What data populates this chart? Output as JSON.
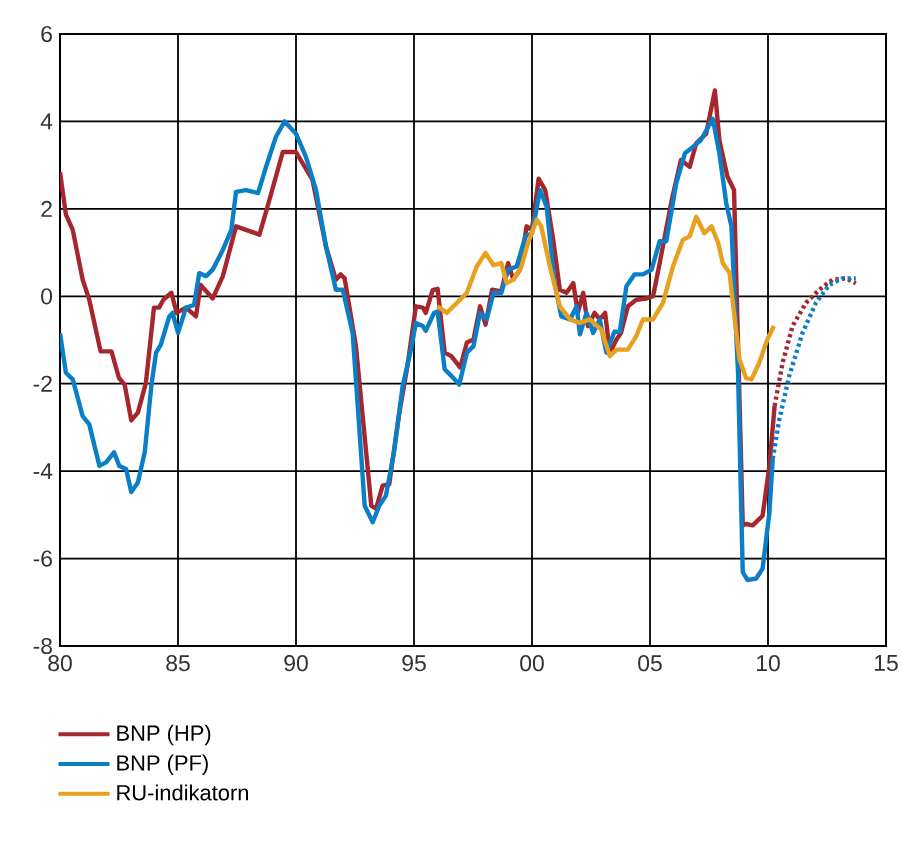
{
  "chart_data": {
    "type": "line",
    "xlim": [
      1980,
      2015
    ],
    "ylim": [
      -8,
      6
    ],
    "xticks": [
      {
        "value": 1980,
        "label": "80"
      },
      {
        "value": 1985,
        "label": "85"
      },
      {
        "value": 1990,
        "label": "90"
      },
      {
        "value": 1995,
        "label": "95"
      },
      {
        "value": 2000,
        "label": "00"
      },
      {
        "value": 2005,
        "label": "05"
      },
      {
        "value": 2010,
        "label": "10"
      },
      {
        "value": 2015,
        "label": "15"
      }
    ],
    "yticks": [
      -8,
      -6,
      -4,
      -2,
      0,
      2,
      4,
      6
    ],
    "grid": true,
    "legend": "bottom",
    "series": [
      {
        "name": "BNP (HP)",
        "color": "#a6262d",
        "x": [
          1980.0,
          1980.25,
          1980.54,
          1980.96,
          1981.24,
          1981.72,
          1982.18,
          1982.5,
          1982.74,
          1983.02,
          1983.3,
          1983.64,
          1983.98,
          1984.2,
          1984.38,
          1984.72,
          1984.94,
          1985.34,
          1985.76,
          1985.96,
          1986.47,
          1986.9,
          1987.46,
          1987.88,
          1988.45,
          1988.73,
          1989.44,
          1990.0,
          1990.7,
          1991.27,
          1991.69,
          1991.89,
          1992.06,
          1992.54,
          1993.19,
          1993.39,
          1993.67,
          1993.95,
          1994.38,
          1994.72,
          1995.08,
          1995.37,
          1995.5,
          1995.79,
          1996.0,
          1996.3,
          1996.58,
          1996.96,
          1997.24,
          1997.52,
          1997.8,
          1998.03,
          1998.31,
          1998.7,
          1998.99,
          1999.21,
          1999.49,
          1999.77,
          2000.0,
          2000.28,
          2000.56,
          2000.9,
          2001.18,
          2001.46,
          2001.75,
          2001.94,
          2002.17,
          2002.37,
          2002.65,
          2002.87,
          2003.1,
          2003.3,
          2003.58,
          2003.77,
          2004.06,
          2004.42,
          2004.85,
          2005.13,
          2005.41,
          2005.92,
          2006.31,
          2006.68,
          2006.96,
          2007.38,
          2007.75,
          2007.94,
          2008.28,
          2008.56,
          2008.93,
          2009.07,
          2009.35,
          2009.77,
          2010.06,
          2010.28
        ],
        "values": [
          2.84,
          1.87,
          1.52,
          0.38,
          -0.08,
          -1.26,
          -1.26,
          -1.87,
          -2.02,
          -2.84,
          -2.66,
          -1.98,
          -0.26,
          -0.26,
          -0.08,
          0.08,
          -0.38,
          -0.26,
          -0.46,
          0.26,
          -0.05,
          0.46,
          1.6,
          1.52,
          1.41,
          1.93,
          3.3,
          3.3,
          2.66,
          1.14,
          0.38,
          0.5,
          0.41,
          -1.14,
          -4.79,
          -4.86,
          -4.33,
          -4.3,
          -2.66,
          -1.6,
          -0.23,
          -0.26,
          -0.38,
          0.14,
          0.17,
          -1.29,
          -1.37,
          -1.63,
          -1.06,
          -0.99,
          -0.23,
          -0.65,
          0.15,
          0.11,
          0.76,
          0.38,
          0.61,
          1.6,
          1.52,
          2.69,
          2.43,
          1.29,
          0.15,
          0.08,
          0.3,
          -0.38,
          0.08,
          -0.68,
          -0.38,
          -0.53,
          -0.38,
          -1.29,
          -0.99,
          -0.84,
          -0.23,
          -0.08,
          -0.05,
          0.0,
          0.76,
          2.2,
          3.12,
          2.96,
          3.5,
          3.72,
          4.71,
          3.57,
          2.74,
          2.43,
          -5.24,
          -5.21,
          -5.24,
          -5.02,
          -3.88,
          -2.51
        ]
      },
      {
        "name": "BNP (PF)",
        "color": "#0a7fc8",
        "x": [
          1980.0,
          1980.25,
          1980.54,
          1980.96,
          1981.24,
          1981.67,
          1981.95,
          1982.29,
          1982.51,
          1982.8,
          1983.02,
          1983.3,
          1983.59,
          1983.87,
          1984.07,
          1984.27,
          1984.63,
          1984.77,
          1985.0,
          1985.34,
          1985.68,
          1985.9,
          1986.19,
          1986.47,
          1986.9,
          1987.26,
          1987.46,
          1987.88,
          1988.39,
          1988.73,
          1989.15,
          1989.52,
          1990.0,
          1990.42,
          1990.85,
          1991.27,
          1991.69,
          1991.98,
          1992.4,
          1992.91,
          1993.25,
          1993.53,
          1993.81,
          1994.15,
          1994.52,
          1994.89,
          1995.08,
          1995.37,
          1995.5,
          1995.85,
          1996.0,
          1996.3,
          1996.58,
          1996.92,
          1997.24,
          1997.52,
          1997.8,
          1998.08,
          1998.37,
          1998.7,
          1998.99,
          1999.35,
          1999.72,
          2000.0,
          2000.34,
          2000.62,
          2000.96,
          2001.24,
          2001.61,
          2001.89,
          2002.03,
          2002.31,
          2002.59,
          2002.87,
          2003.15,
          2003.49,
          2003.72,
          2004.0,
          2004.34,
          2004.7,
          2005.07,
          2005.41,
          2005.69,
          2006.11,
          2006.48,
          2006.76,
          2007.15,
          2007.66,
          2007.94,
          2008.23,
          2008.45,
          2008.73,
          2008.93,
          2009.13,
          2009.49,
          2009.77,
          2010.06,
          2010.2
        ],
        "values": [
          -0.84,
          -1.75,
          -1.9,
          -2.74,
          -2.93,
          -3.88,
          -3.8,
          -3.57,
          -3.88,
          -3.95,
          -4.48,
          -4.26,
          -3.57,
          -2.05,
          -1.29,
          -1.11,
          -0.46,
          -0.38,
          -0.84,
          -0.26,
          -0.2,
          0.53,
          0.46,
          0.61,
          1.06,
          1.52,
          2.39,
          2.43,
          2.36,
          2.96,
          3.65,
          4.0,
          3.72,
          3.19,
          2.43,
          1.14,
          0.15,
          0.15,
          -0.84,
          -4.79,
          -5.17,
          -4.79,
          -4.56,
          -3.57,
          -2.05,
          -1.17,
          -0.61,
          -0.68,
          -0.79,
          -0.38,
          -0.35,
          -1.67,
          -1.82,
          -2.02,
          -1.29,
          -1.14,
          -0.38,
          -0.53,
          0.08,
          0.08,
          0.61,
          0.68,
          1.37,
          1.44,
          2.43,
          2.05,
          0.3,
          -0.46,
          -0.53,
          -0.23,
          -0.87,
          -0.38,
          -0.84,
          -0.53,
          -1.29,
          -0.81,
          -0.81,
          0.23,
          0.5,
          0.5,
          0.61,
          1.26,
          1.26,
          2.58,
          3.27,
          3.39,
          3.57,
          4.06,
          3.27,
          2.13,
          1.6,
          -1.75,
          -6.31,
          -6.49,
          -6.46,
          -6.23,
          -4.94,
          -3.72
        ]
      },
      {
        "name": "RU-indikatorn",
        "color": "#e8a020",
        "x": [
          1996.0,
          1996.39,
          1996.82,
          1997.24,
          1997.66,
          1998.03,
          1998.37,
          1998.7,
          1998.93,
          1999.21,
          1999.55,
          1999.83,
          2000.2,
          2000.39,
          2000.76,
          2001.18,
          2001.61,
          2002.03,
          2002.45,
          2002.93,
          2003.3,
          2003.58,
          2004.06,
          2004.42,
          2004.7,
          2005.13,
          2005.55,
          2005.97,
          2006.39,
          2006.68,
          2006.96,
          2007.3,
          2007.61,
          2007.89,
          2008.08,
          2008.37,
          2008.56,
          2008.79,
          2009.07,
          2009.3,
          2009.63,
          2009.97,
          2010.25
        ],
        "values": [
          -0.23,
          -0.38,
          -0.15,
          0.08,
          0.68,
          0.99,
          0.71,
          0.76,
          0.3,
          0.38,
          0.68,
          1.22,
          1.75,
          1.6,
          0.68,
          -0.23,
          -0.53,
          -0.61,
          -0.53,
          -0.76,
          -1.37,
          -1.22,
          -1.22,
          -0.91,
          -0.53,
          -0.53,
          -0.15,
          0.68,
          1.29,
          1.37,
          1.82,
          1.44,
          1.6,
          1.22,
          0.76,
          0.53,
          -0.38,
          -1.44,
          -1.87,
          -1.9,
          -1.52,
          -0.99,
          -0.68
        ]
      },
      {
        "color": "#a6262d",
        "line_style": "dotted",
        "x": [
          2010.28,
          2010.62,
          2011.04,
          2011.61,
          2012.17,
          2012.73,
          2013.3,
          2013.72
        ],
        "values": [
          -2.51,
          -1.52,
          -0.68,
          -0.15,
          0.15,
          0.38,
          0.41,
          0.3
        ]
      },
      {
        "color": "#0a7fc8",
        "line_style": "dotted",
        "x": [
          2010.2,
          2010.48,
          2010.9,
          2011.46,
          2012.03,
          2012.59,
          2013.15,
          2013.72
        ],
        "values": [
          -3.72,
          -2.81,
          -1.82,
          -0.84,
          -0.15,
          0.26,
          0.41,
          0.41
        ]
      }
    ]
  }
}
